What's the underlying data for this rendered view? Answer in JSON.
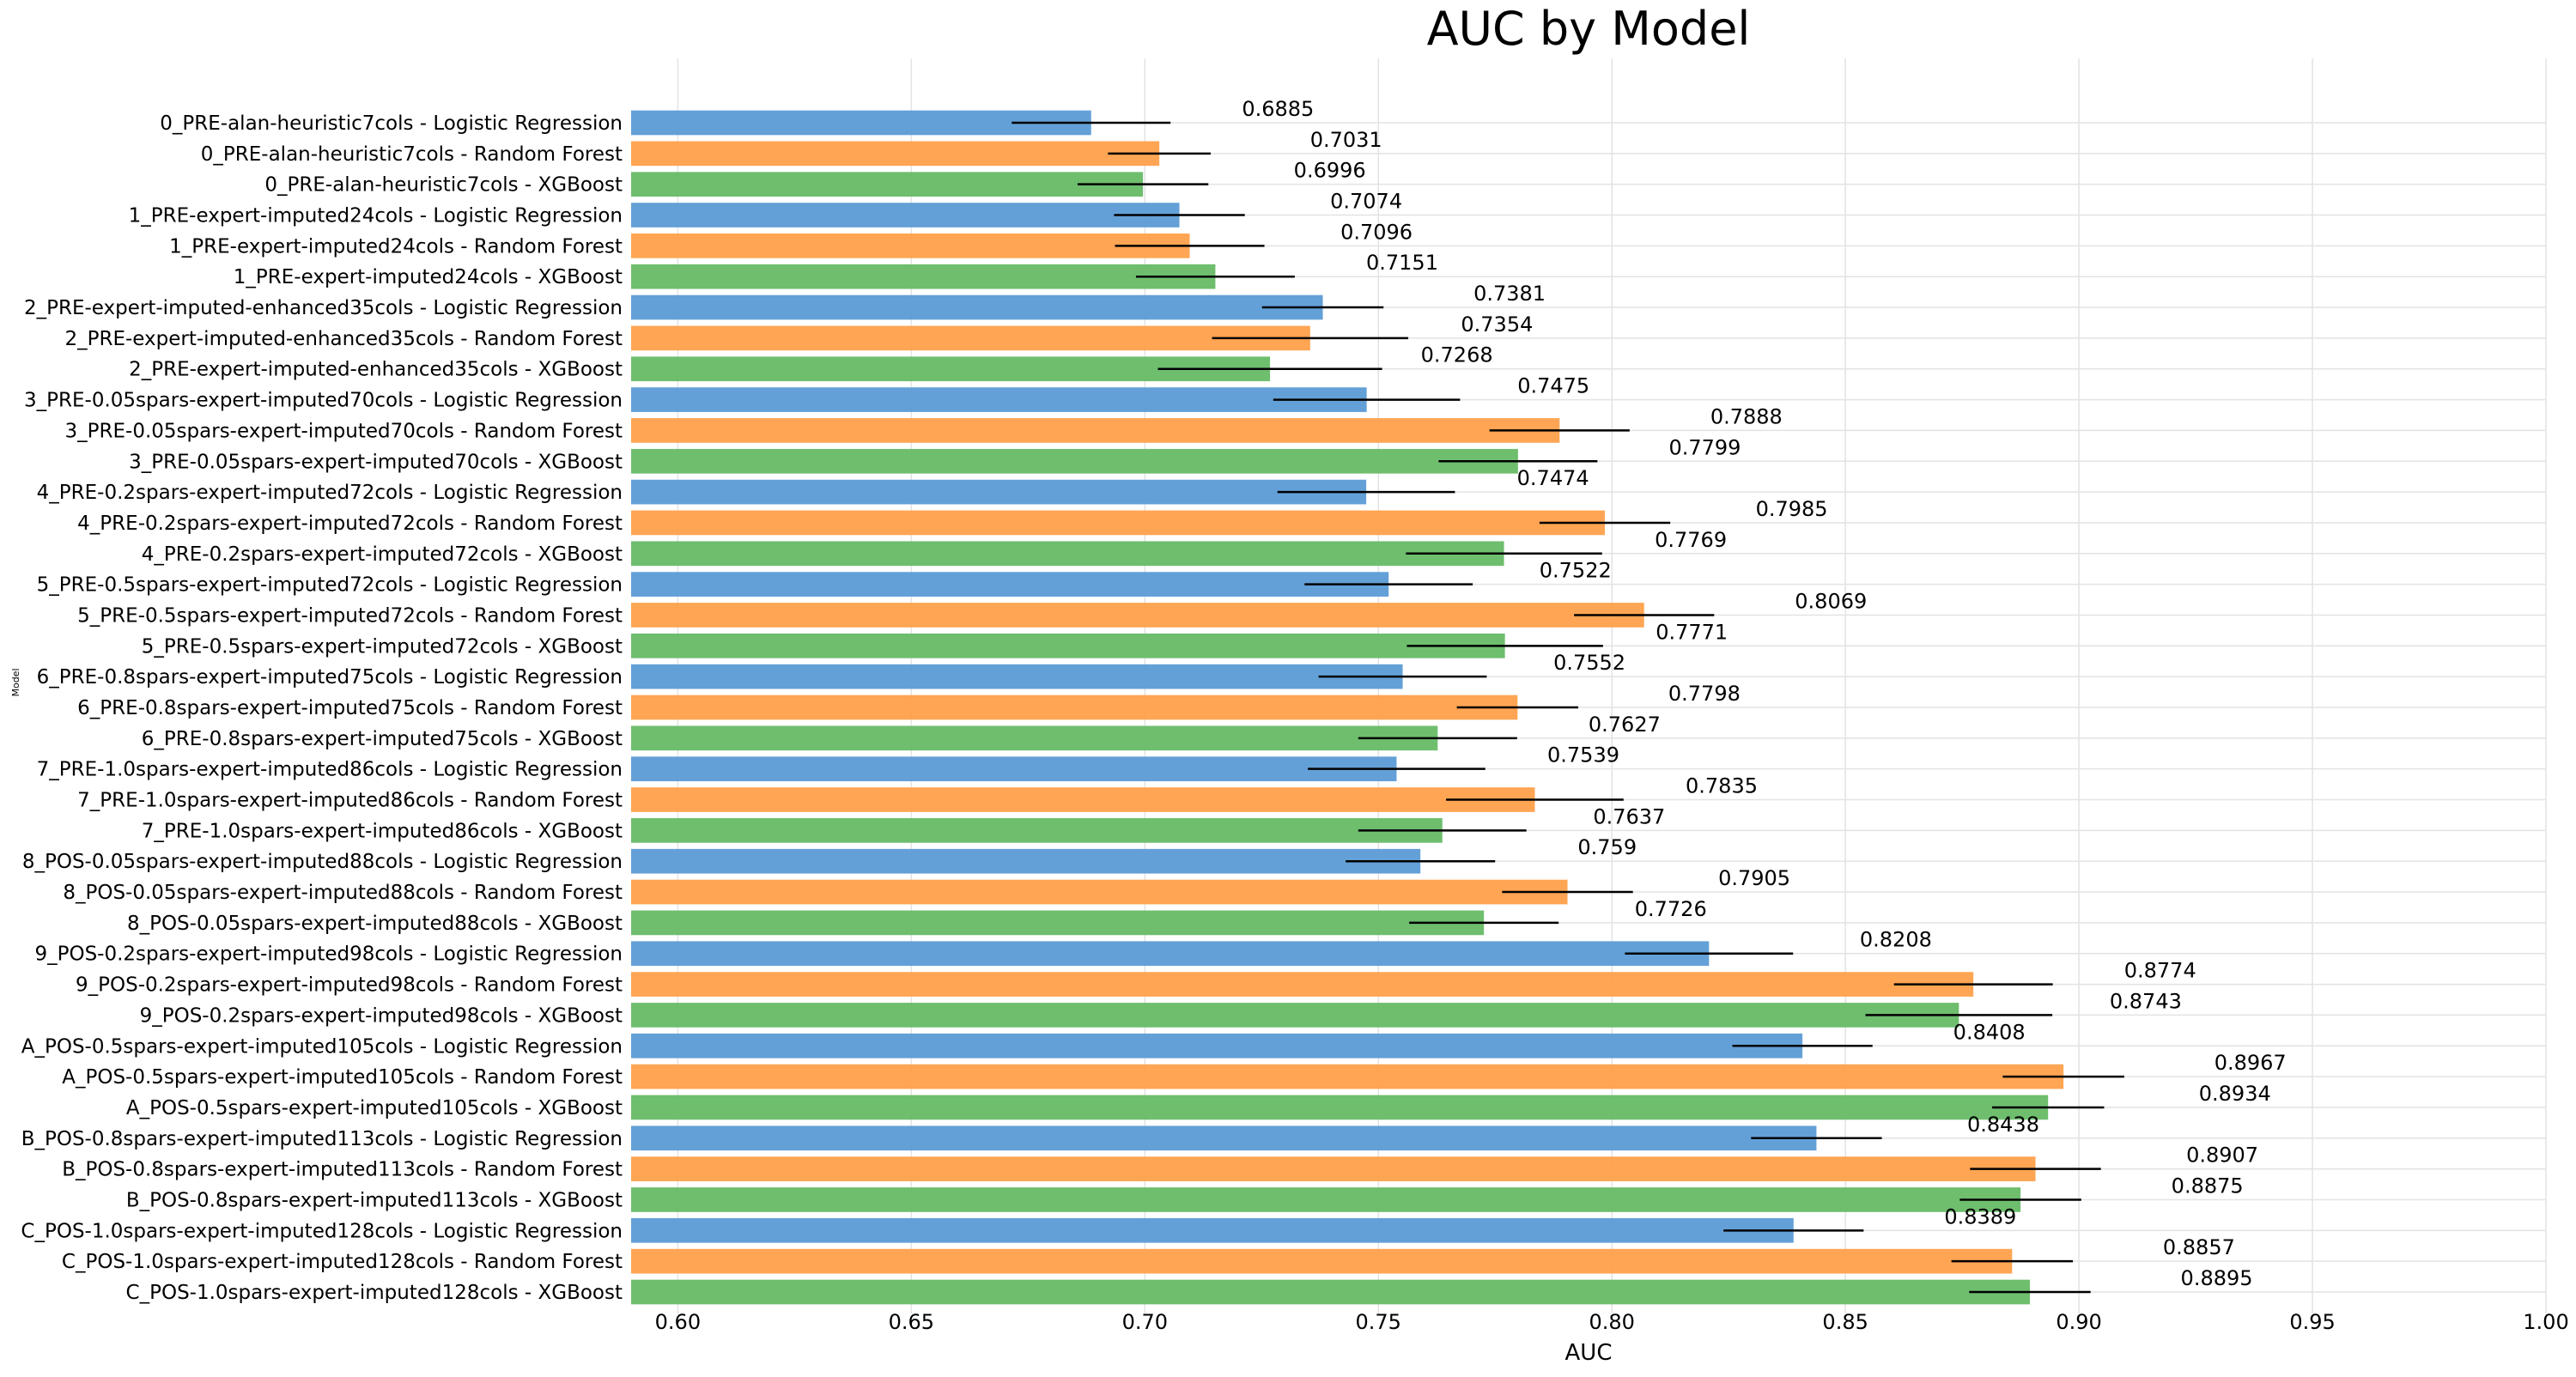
{
  "chart_data": {
    "type": "bar",
    "orientation": "horizontal",
    "title": "AUC by Model",
    "xlabel": "AUC",
    "ylabel": "Model",
    "xlim": [
      0.59,
      1.0
    ],
    "xticks": [
      "0.60",
      "0.65",
      "0.70",
      "0.75",
      "0.80",
      "0.85",
      "0.90",
      "0.95",
      "1.00"
    ],
    "grid": true,
    "colors": {
      "Logistic Regression": "#5b9bd5",
      "Random Forest": "#ffa04a",
      "XGBoost": "#66bb66"
    },
    "bars": [
      {
        "label": "0_PRE-alan-heuristic7cols - Logistic Regression",
        "model": "Logistic Regression",
        "value": 0.6885,
        "value_label": "0.6885",
        "err": 0.017
      },
      {
        "label": "0_PRE-alan-heuristic7cols - Random Forest",
        "model": "Random Forest",
        "value": 0.7031,
        "value_label": "0.7031",
        "err": 0.011
      },
      {
        "label": "0_PRE-alan-heuristic7cols - XGBoost",
        "model": "XGBoost",
        "value": 0.6996,
        "value_label": "0.6996",
        "err": 0.014
      },
      {
        "label": "1_PRE-expert-imputed24cols - Logistic Regression",
        "model": "Logistic Regression",
        "value": 0.7074,
        "value_label": "0.7074",
        "err": 0.014
      },
      {
        "label": "1_PRE-expert-imputed24cols - Random Forest",
        "model": "Random Forest",
        "value": 0.7096,
        "value_label": "0.7096",
        "err": 0.016
      },
      {
        "label": "1_PRE-expert-imputed24cols - XGBoost",
        "model": "XGBoost",
        "value": 0.7151,
        "value_label": "0.7151",
        "err": 0.017
      },
      {
        "label": "2_PRE-expert-imputed-enhanced35cols - Logistic Regression",
        "model": "Logistic Regression",
        "value": 0.7381,
        "value_label": "0.7381",
        "err": 0.013
      },
      {
        "label": "2_PRE-expert-imputed-enhanced35cols - Random Forest",
        "model": "Random Forest",
        "value": 0.7354,
        "value_label": "0.7354",
        "err": 0.021
      },
      {
        "label": "2_PRE-expert-imputed-enhanced35cols - XGBoost",
        "model": "XGBoost",
        "value": 0.7268,
        "value_label": "0.7268",
        "err": 0.024
      },
      {
        "label": "3_PRE-0.05spars-expert-imputed70cols - Logistic Regression",
        "model": "Logistic Regression",
        "value": 0.7475,
        "value_label": "0.7475",
        "err": 0.02
      },
      {
        "label": "3_PRE-0.05spars-expert-imputed70cols - Random Forest",
        "model": "Random Forest",
        "value": 0.7888,
        "value_label": "0.7888",
        "err": 0.015
      },
      {
        "label": "3_PRE-0.05spars-expert-imputed70cols - XGBoost",
        "model": "XGBoost",
        "value": 0.7799,
        "value_label": "0.7799",
        "err": 0.017
      },
      {
        "label": "4_PRE-0.2spars-expert-imputed72cols - Logistic Regression",
        "model": "Logistic Regression",
        "value": 0.7474,
        "value_label": "0.7474",
        "err": 0.019
      },
      {
        "label": "4_PRE-0.2spars-expert-imputed72cols - Random Forest",
        "model": "Random Forest",
        "value": 0.7985,
        "value_label": "0.7985",
        "err": 0.014
      },
      {
        "label": "4_PRE-0.2spars-expert-imputed72cols - XGBoost",
        "model": "XGBoost",
        "value": 0.7769,
        "value_label": "0.7769",
        "err": 0.021
      },
      {
        "label": "5_PRE-0.5spars-expert-imputed72cols - Logistic Regression",
        "model": "Logistic Regression",
        "value": 0.7522,
        "value_label": "0.7522",
        "err": 0.018
      },
      {
        "label": "5_PRE-0.5spars-expert-imputed72cols - Random Forest",
        "model": "Random Forest",
        "value": 0.8069,
        "value_label": "0.8069",
        "err": 0.015
      },
      {
        "label": "5_PRE-0.5spars-expert-imputed72cols - XGBoost",
        "model": "XGBoost",
        "value": 0.7771,
        "value_label": "0.7771",
        "err": 0.021
      },
      {
        "label": "6_PRE-0.8spars-expert-imputed75cols - Logistic Regression",
        "model": "Logistic Regression",
        "value": 0.7552,
        "value_label": "0.7552",
        "err": 0.018
      },
      {
        "label": "6_PRE-0.8spars-expert-imputed75cols - Random Forest",
        "model": "Random Forest",
        "value": 0.7798,
        "value_label": "0.7798",
        "err": 0.013
      },
      {
        "label": "6_PRE-0.8spars-expert-imputed75cols - XGBoost",
        "model": "XGBoost",
        "value": 0.7627,
        "value_label": "0.7627",
        "err": 0.017
      },
      {
        "label": "7_PRE-1.0spars-expert-imputed86cols - Logistic Regression",
        "model": "Logistic Regression",
        "value": 0.7539,
        "value_label": "0.7539",
        "err": 0.019
      },
      {
        "label": "7_PRE-1.0spars-expert-imputed86cols - Random Forest",
        "model": "Random Forest",
        "value": 0.7835,
        "value_label": "0.7835",
        "err": 0.019
      },
      {
        "label": "7_PRE-1.0spars-expert-imputed86cols - XGBoost",
        "model": "XGBoost",
        "value": 0.7637,
        "value_label": "0.7637",
        "err": 0.018
      },
      {
        "label": "8_POS-0.05spars-expert-imputed88cols - Logistic Regression",
        "model": "Logistic Regression",
        "value": 0.759,
        "value_label": "0.759",
        "err": 0.016
      },
      {
        "label": "8_POS-0.05spars-expert-imputed88cols - Random Forest",
        "model": "Random Forest",
        "value": 0.7905,
        "value_label": "0.7905",
        "err": 0.014
      },
      {
        "label": "8_POS-0.05spars-expert-imputed88cols - XGBoost",
        "model": "XGBoost",
        "value": 0.7726,
        "value_label": "0.7726",
        "err": 0.016
      },
      {
        "label": "9_POS-0.2spars-expert-imputed98cols - Logistic Regression",
        "model": "Logistic Regression",
        "value": 0.8208,
        "value_label": "0.8208",
        "err": 0.018
      },
      {
        "label": "9_POS-0.2spars-expert-imputed98cols - Random Forest",
        "model": "Random Forest",
        "value": 0.8774,
        "value_label": "0.8774",
        "err": 0.017
      },
      {
        "label": "9_POS-0.2spars-expert-imputed98cols - XGBoost",
        "model": "XGBoost",
        "value": 0.8743,
        "value_label": "0.8743",
        "err": 0.02
      },
      {
        "label": "A_POS-0.5spars-expert-imputed105cols - Logistic Regression",
        "model": "Logistic Regression",
        "value": 0.8408,
        "value_label": "0.8408",
        "err": 0.015
      },
      {
        "label": "A_POS-0.5spars-expert-imputed105cols - Random Forest",
        "model": "Random Forest",
        "value": 0.8967,
        "value_label": "0.8967",
        "err": 0.013
      },
      {
        "label": "A_POS-0.5spars-expert-imputed105cols - XGBoost",
        "model": "XGBoost",
        "value": 0.8934,
        "value_label": "0.8934",
        "err": 0.012
      },
      {
        "label": "B_POS-0.8spars-expert-imputed113cols - Logistic Regression",
        "model": "Logistic Regression",
        "value": 0.8438,
        "value_label": "0.8438",
        "err": 0.014
      },
      {
        "label": "B_POS-0.8spars-expert-imputed113cols - Random Forest",
        "model": "Random Forest",
        "value": 0.8907,
        "value_label": "0.8907",
        "err": 0.014
      },
      {
        "label": "B_POS-0.8spars-expert-imputed113cols - XGBoost",
        "model": "XGBoost",
        "value": 0.8875,
        "value_label": "0.8875",
        "err": 0.013
      },
      {
        "label": "C_POS-1.0spars-expert-imputed128cols - Logistic Regression",
        "model": "Logistic Regression",
        "value": 0.8389,
        "value_label": "0.8389",
        "err": 0.015
      },
      {
        "label": "C_POS-1.0spars-expert-imputed128cols - Random Forest",
        "model": "Random Forest",
        "value": 0.8857,
        "value_label": "0.8857",
        "err": 0.013
      },
      {
        "label": "C_POS-1.0spars-expert-imputed128cols - XGBoost",
        "model": "XGBoost",
        "value": 0.8895,
        "value_label": "0.8895",
        "err": 0.013
      }
    ]
  }
}
